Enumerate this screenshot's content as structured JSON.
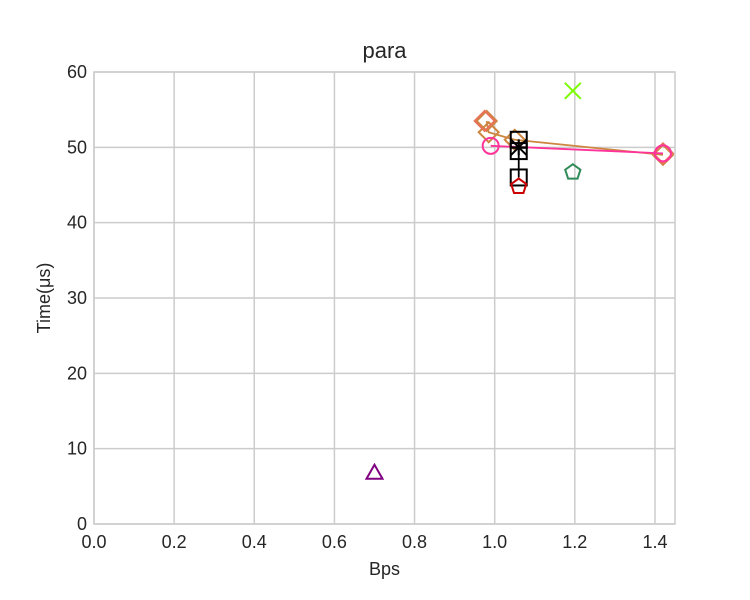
{
  "chart_data": {
    "type": "scatter",
    "title": "para",
    "xlabel": "Bps",
    "ylabel": "Time(μs)",
    "xlim": [
      0.0,
      1.45
    ],
    "ylim": [
      0,
      60
    ],
    "xticks": [
      0.0,
      0.2,
      0.4,
      0.6,
      0.8,
      1.0,
      1.2,
      1.4
    ],
    "xtick_labels": [
      "0.0",
      "0.2",
      "0.4",
      "0.6",
      "0.8",
      "1.0",
      "1.2",
      "1.4"
    ],
    "yticks": [
      0,
      10,
      20,
      30,
      40,
      50,
      60
    ],
    "ytick_labels": [
      "0",
      "10",
      "20",
      "30",
      "40",
      "50",
      "60"
    ],
    "grid": true,
    "series": [
      {
        "marker": "diamond",
        "color": "#cd853f",
        "line": true,
        "points": [
          [
            0.98,
            53.5
          ],
          [
            0.985,
            52.0
          ],
          [
            1.05,
            51.0
          ],
          [
            1.42,
            49.0
          ]
        ]
      },
      {
        "marker": "diamond",
        "color": "#e8735a",
        "line": false,
        "points": [
          [
            0.975,
            53.5
          ],
          [
            1.42,
            49.2
          ]
        ]
      },
      {
        "marker": "circle",
        "color": "#ff3399",
        "line": true,
        "points": [
          [
            0.99,
            50.2
          ],
          [
            1.42,
            49.2
          ]
        ]
      },
      {
        "marker": "square",
        "color": "#000000",
        "line": true,
        "points": [
          [
            1.06,
            51.0
          ],
          [
            1.06,
            49.5
          ],
          [
            1.06,
            46.0
          ]
        ]
      },
      {
        "marker": "star",
        "color": "#000000",
        "line": false,
        "points": [
          [
            1.06,
            50.0
          ]
        ]
      },
      {
        "marker": "pentagon",
        "color": "#cc0000",
        "line": false,
        "points": [
          [
            1.06,
            44.8
          ]
        ]
      },
      {
        "marker": "pentagon",
        "color": "#2e8b57",
        "line": false,
        "points": [
          [
            1.195,
            46.7
          ]
        ]
      },
      {
        "marker": "x",
        "color": "#7cfc00",
        "line": false,
        "points": [
          [
            1.195,
            57.5
          ]
        ]
      },
      {
        "marker": "triangle",
        "color": "#800080",
        "line": false,
        "points": [
          [
            0.7,
            6.8
          ]
        ]
      }
    ]
  }
}
